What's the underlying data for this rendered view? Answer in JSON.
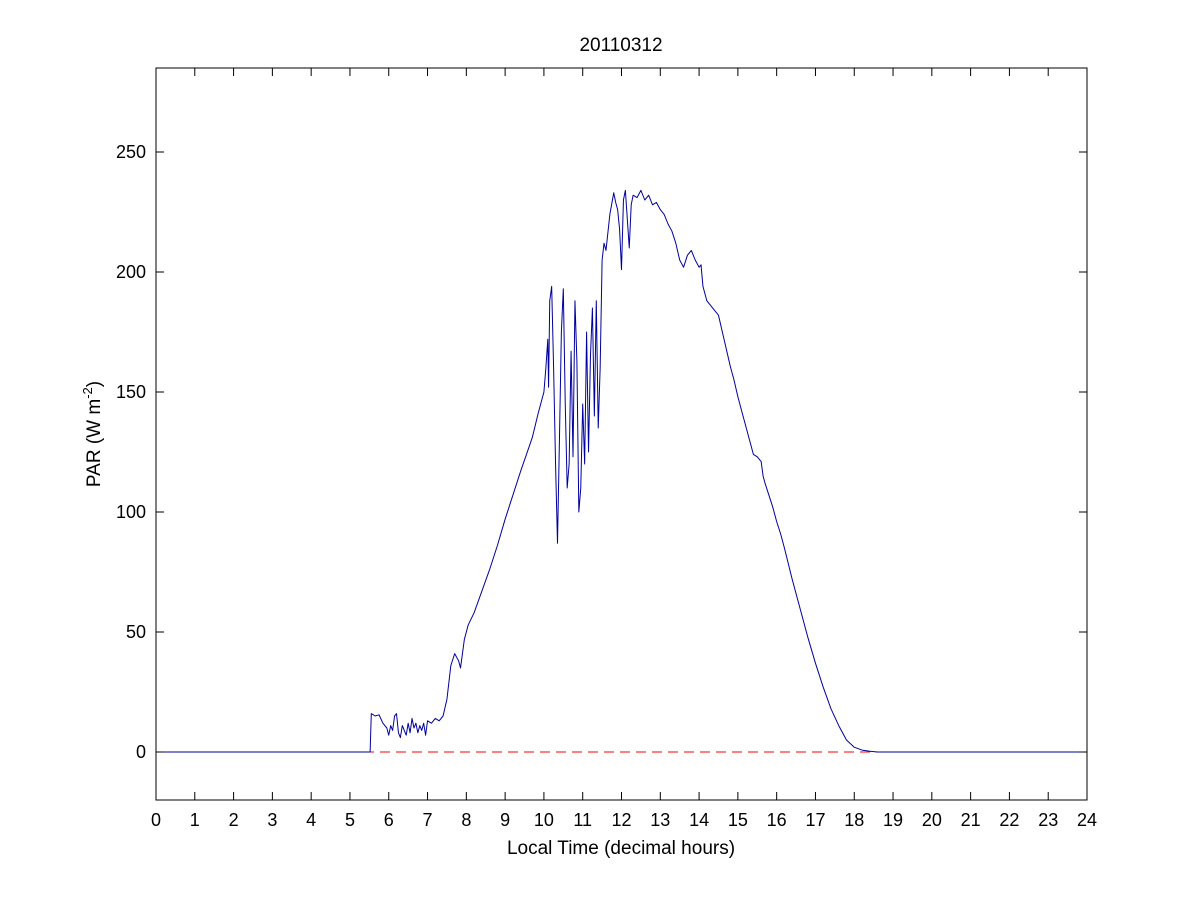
{
  "chart_data": {
    "type": "line",
    "title": "20110312",
    "xlabel": "Local Time (decimal hours)",
    "ylabel": {
      "text": "PAR (W m",
      "superscript": "-2",
      "suffix": ")"
    },
    "xlim": [
      0,
      24
    ],
    "ylim": [
      -20,
      285
    ],
    "x_ticks": [
      0,
      1,
      2,
      3,
      4,
      5,
      6,
      7,
      8,
      9,
      10,
      11,
      12,
      13,
      14,
      15,
      16,
      17,
      18,
      19,
      20,
      21,
      22,
      23,
      24
    ],
    "y_ticks": [
      0,
      50,
      100,
      150,
      200,
      250
    ],
    "grid": false,
    "series": [
      {
        "color": "#0000a0",
        "style": "solid",
        "points": [
          [
            0,
            0
          ],
          [
            5.5,
            0
          ],
          [
            5.52,
            0
          ],
          [
            5.55,
            16
          ],
          [
            5.65,
            15
          ],
          [
            5.75,
            15.5
          ],
          [
            5.85,
            12
          ],
          [
            5.95,
            10
          ],
          [
            6.0,
            7
          ],
          [
            6.05,
            11
          ],
          [
            6.1,
            9
          ],
          [
            6.15,
            15
          ],
          [
            6.2,
            16
          ],
          [
            6.25,
            8
          ],
          [
            6.3,
            6
          ],
          [
            6.35,
            11
          ],
          [
            6.4,
            9
          ],
          [
            6.45,
            7
          ],
          [
            6.5,
            12
          ],
          [
            6.55,
            8
          ],
          [
            6.6,
            14
          ],
          [
            6.65,
            10
          ],
          [
            6.7,
            12
          ],
          [
            6.75,
            8
          ],
          [
            6.8,
            11
          ],
          [
            6.85,
            9
          ],
          [
            6.9,
            12
          ],
          [
            6.95,
            7
          ],
          [
            7.0,
            13
          ],
          [
            7.1,
            12
          ],
          [
            7.2,
            14
          ],
          [
            7.3,
            13
          ],
          [
            7.4,
            15
          ],
          [
            7.5,
            22
          ],
          [
            7.6,
            36
          ],
          [
            7.7,
            41
          ],
          [
            7.8,
            38
          ],
          [
            7.85,
            35
          ],
          [
            7.95,
            47
          ],
          [
            8.05,
            53
          ],
          [
            8.2,
            58
          ],
          [
            8.4,
            67
          ],
          [
            8.6,
            76
          ],
          [
            8.8,
            86
          ],
          [
            9.0,
            97
          ],
          [
            9.2,
            107
          ],
          [
            9.4,
            117
          ],
          [
            9.55,
            124
          ],
          [
            9.7,
            131
          ],
          [
            9.85,
            141
          ],
          [
            10.0,
            150
          ],
          [
            10.05,
            160
          ],
          [
            10.1,
            172
          ],
          [
            10.12,
            152
          ],
          [
            10.15,
            188
          ],
          [
            10.2,
            194
          ],
          [
            10.25,
            160
          ],
          [
            10.3,
            120
          ],
          [
            10.35,
            87
          ],
          [
            10.4,
            130
          ],
          [
            10.45,
            175
          ],
          [
            10.5,
            193
          ],
          [
            10.55,
            145
          ],
          [
            10.6,
            110
          ],
          [
            10.65,
            120
          ],
          [
            10.7,
            167
          ],
          [
            10.75,
            123
          ],
          [
            10.8,
            188
          ],
          [
            10.85,
            163
          ],
          [
            10.9,
            100
          ],
          [
            10.95,
            110
          ],
          [
            11.0,
            145
          ],
          [
            11.05,
            120
          ],
          [
            11.1,
            175
          ],
          [
            11.15,
            125
          ],
          [
            11.2,
            165
          ],
          [
            11.25,
            185
          ],
          [
            11.3,
            140
          ],
          [
            11.35,
            188
          ],
          [
            11.4,
            135
          ],
          [
            11.45,
            160
          ],
          [
            11.5,
            205
          ],
          [
            11.55,
            212
          ],
          [
            11.6,
            209
          ],
          [
            11.7,
            224
          ],
          [
            11.8,
            233
          ],
          [
            11.85,
            229
          ],
          [
            11.9,
            226
          ],
          [
            11.95,
            218
          ],
          [
            12.0,
            201
          ],
          [
            12.05,
            230
          ],
          [
            12.1,
            234
          ],
          [
            12.15,
            222
          ],
          [
            12.2,
            210
          ],
          [
            12.25,
            228
          ],
          [
            12.3,
            232
          ],
          [
            12.4,
            231
          ],
          [
            12.5,
            234
          ],
          [
            12.6,
            230
          ],
          [
            12.7,
            232
          ],
          [
            12.8,
            228
          ],
          [
            12.9,
            229
          ],
          [
            13.0,
            226
          ],
          [
            13.1,
            224
          ],
          [
            13.2,
            220
          ],
          [
            13.3,
            217
          ],
          [
            13.4,
            212
          ],
          [
            13.5,
            205
          ],
          [
            13.6,
            202
          ],
          [
            13.7,
            207
          ],
          [
            13.8,
            209
          ],
          [
            13.9,
            205
          ],
          [
            14.0,
            202
          ],
          [
            14.05,
            203
          ],
          [
            14.1,
            194
          ],
          [
            14.2,
            188
          ],
          [
            14.3,
            186
          ],
          [
            14.4,
            184
          ],
          [
            14.5,
            182
          ],
          [
            14.6,
            175
          ],
          [
            14.7,
            168
          ],
          [
            14.8,
            161
          ],
          [
            14.9,
            155
          ],
          [
            15.0,
            148
          ],
          [
            15.1,
            142
          ],
          [
            15.2,
            136
          ],
          [
            15.3,
            130
          ],
          [
            15.4,
            124
          ],
          [
            15.5,
            123
          ],
          [
            15.6,
            121
          ],
          [
            15.65,
            115
          ],
          [
            15.7,
            112
          ],
          [
            15.8,
            107
          ],
          [
            15.9,
            102
          ],
          [
            16.0,
            96
          ],
          [
            16.1,
            91
          ],
          [
            16.2,
            85
          ],
          [
            16.4,
            72
          ],
          [
            16.6,
            60
          ],
          [
            16.8,
            48
          ],
          [
            17.0,
            37
          ],
          [
            17.2,
            27
          ],
          [
            17.4,
            18
          ],
          [
            17.6,
            11
          ],
          [
            17.8,
            5
          ],
          [
            18.0,
            2
          ],
          [
            18.2,
            0.8
          ],
          [
            18.4,
            0.3
          ],
          [
            18.6,
            0
          ],
          [
            24,
            0
          ]
        ]
      },
      {
        "color": "#ff0000",
        "style": "dashed",
        "points": [
          [
            0,
            0
          ],
          [
            24,
            0
          ]
        ]
      }
    ]
  }
}
